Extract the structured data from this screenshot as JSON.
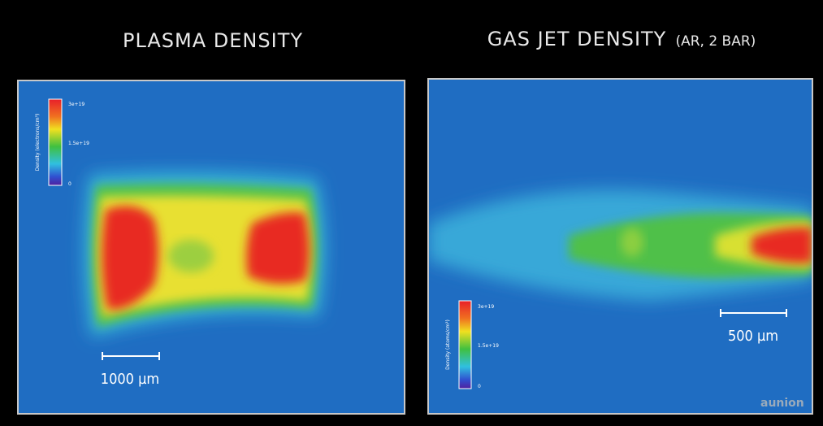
{
  "panels": [
    {
      "title": "PLASMA DENSITY",
      "colorbar": {
        "label": "Density (electrons/cm³)",
        "ticks": [
          "3e+19",
          "1.5e+19",
          "0"
        ]
      },
      "scale_bar": "1000 µm"
    },
    {
      "title": "GAS JET DENSITY",
      "title_note": "(AR, 2 BAR)",
      "colorbar": {
        "label": "Density (atoms/cm³)",
        "ticks": [
          "3e+19",
          "1.5e+19",
          "0"
        ]
      },
      "scale_bar": "500 µm"
    }
  ],
  "watermark": "aunion"
}
